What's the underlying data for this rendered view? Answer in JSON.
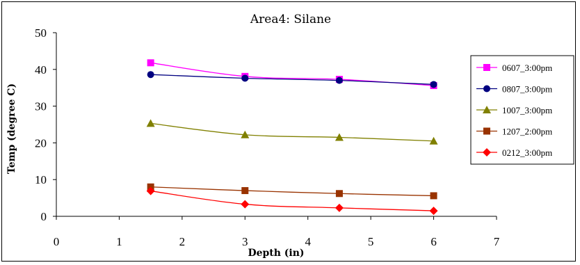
{
  "chart_data": {
    "type": "line",
    "title": "Area4: Silane",
    "xlabel": "Depth (in)",
    "ylabel": "Temp (degree C)",
    "xlim": [
      0,
      7
    ],
    "ylim": [
      0,
      50
    ],
    "xticks": [
      "0",
      "1",
      "2",
      "3",
      "4",
      "5",
      "6",
      "7"
    ],
    "yticks": [
      "0",
      "10",
      "20",
      "30",
      "40",
      "50"
    ],
    "grid": false,
    "legend_position": "right",
    "x": [
      1.5,
      3,
      4.5,
      6
    ],
    "series": [
      {
        "name": "0607_3:00pm",
        "values": [
          41.8,
          38.1,
          37.3,
          35.6
        ],
        "color": "#ff00ff",
        "marker": "square"
      },
      {
        "name": "0807_3:00pm",
        "values": [
          38.6,
          37.6,
          37.0,
          35.9
        ],
        "color": "#000080",
        "marker": "circle"
      },
      {
        "name": "1007_3:00pm",
        "values": [
          25.3,
          22.2,
          21.5,
          20.5
        ],
        "color": "#808000",
        "marker": "triangle"
      },
      {
        "name": "1207_2:00pm",
        "values": [
          8.0,
          7.0,
          6.2,
          5.6
        ],
        "color": "#993300",
        "marker": "square"
      },
      {
        "name": "0212_3:00pm",
        "values": [
          6.9,
          3.3,
          2.3,
          1.5
        ],
        "color": "#ff0000",
        "marker": "diamond"
      }
    ]
  }
}
